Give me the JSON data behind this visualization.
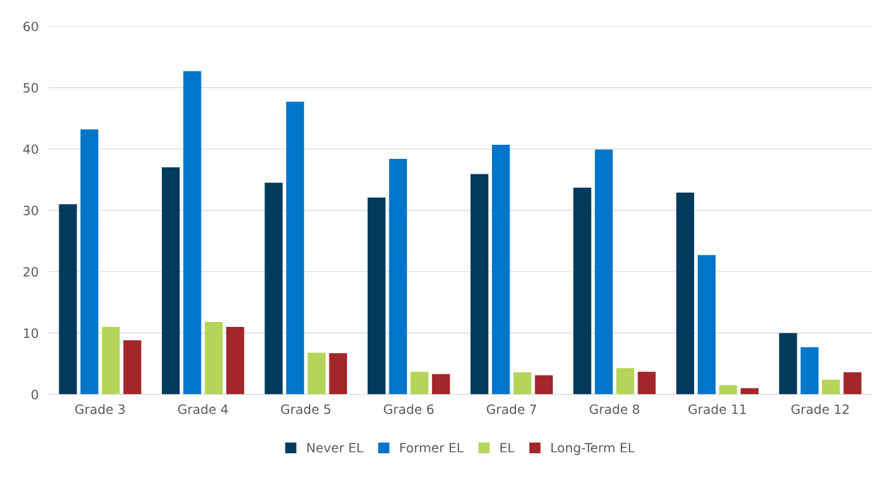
{
  "chart_data": {
    "type": "bar",
    "categories": [
      "Grade 3",
      "Grade 4",
      "Grade 5",
      "Grade 6",
      "Grade 7",
      "Grade 8",
      "Grade 11",
      "Grade 12"
    ],
    "series": [
      {
        "name": "Never EL",
        "color": "#003a5c",
        "values": [
          31.0,
          37.0,
          34.5,
          32.1,
          35.9,
          33.7,
          32.9,
          10.0
        ]
      },
      {
        "name": "Former EL",
        "color": "#0075c9",
        "values": [
          43.2,
          52.7,
          47.7,
          38.4,
          40.7,
          39.9,
          22.7,
          7.7
        ]
      },
      {
        "name": "EL",
        "color": "#b5d55a",
        "values": [
          11.0,
          11.8,
          6.8,
          3.7,
          3.6,
          4.3,
          1.5,
          2.4
        ]
      },
      {
        "name": "Long-Term EL",
        "color": "#a3262a",
        "values": [
          8.8,
          11.0,
          6.7,
          3.3,
          3.1,
          3.7,
          1.0,
          3.6
        ]
      }
    ],
    "ylim": [
      0,
      60
    ],
    "yticks": [
      0,
      10,
      20,
      30,
      40,
      50,
      60
    ],
    "grid": "y",
    "legend": "bottom"
  }
}
